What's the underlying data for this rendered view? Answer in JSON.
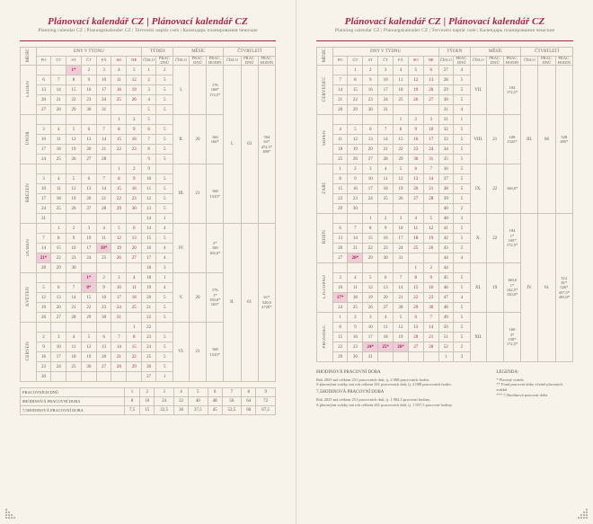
{
  "accent": "#a8234b",
  "title": "Plánovací kalendář CZ | Plánovací kalendář CZ",
  "subtitle": "Planning calendar CZ | Planungskalender CZ | Tervezési naptár cseh | Календарь планирования чешские",
  "header_groups": [
    "MĚSÍC",
    "DNY V TÝDNU",
    "TÝDEN",
    "MĚSÍC",
    "ČTVRTLETÍ"
  ],
  "day_labels": [
    "PO",
    "ÚT",
    "ST",
    "ČT",
    "PÁ",
    "SO",
    "NE"
  ],
  "sub_labels": [
    "ČÍSLO",
    "PRAC. DNŮ",
    "ČÍSLO",
    "PRAC. DNŮ",
    "PRAC. HODIN",
    "ČÍSLO",
    "PRAC. DNŮ",
    "PRAC. HODIN"
  ],
  "months_left": [
    {
      "name": "LEDEN",
      "weeks": [
        {
          "d": [
            "",
            "",
            "1*",
            "2",
            "3",
            "4",
            "5"
          ],
          "wk": 1,
          "wd": 2
        },
        {
          "d": [
            "6",
            "7",
            "8",
            "9",
            "10",
            "11",
            "12"
          ],
          "wk": 2,
          "wd": 5
        },
        {
          "d": [
            "13",
            "14",
            "15",
            "16",
            "17",
            "18",
            "19"
          ],
          "wk": 3,
          "wd": 5
        },
        {
          "d": [
            "20",
            "21",
            "22",
            "23",
            "24",
            "25",
            "26"
          ],
          "wk": 4,
          "wd": 5
        },
        {
          "d": [
            "27",
            "28",
            "29",
            "30",
            "31",
            "",
            ""
          ],
          "wk": 5,
          "wd": 5
        }
      ],
      "mnum": "I.",
      "mwd": "",
      "mh": [
        "176",
        "168*",
        "172,5*"
      ]
    },
    {
      "name": "ÚNOR",
      "weeks": [
        {
          "d": [
            "",
            "",
            "",
            "",
            "",
            "1",
            "2"
          ],
          "wk": 5,
          "wd": ""
        },
        {
          "d": [
            "3",
            "4",
            "5",
            "6",
            "7",
            "8",
            "9"
          ],
          "wk": 6,
          "wd": 5
        },
        {
          "d": [
            "10",
            "11",
            "12",
            "13",
            "14",
            "15",
            "16"
          ],
          "wk": 7,
          "wd": 5
        },
        {
          "d": [
            "17",
            "18",
            "19",
            "20",
            "21",
            "22",
            "23"
          ],
          "wk": 8,
          "wd": 5
        },
        {
          "d": [
            "24",
            "25",
            "26",
            "27",
            "28",
            "",
            ""
          ],
          "wk": 9,
          "wd": 5
        }
      ],
      "mnum": "II.",
      "mwd": 20,
      "mh": [
        "160",
        "160*"
      ]
    },
    {
      "name": "BŘEZEN",
      "weeks": [
        {
          "d": [
            "",
            "",
            "",
            "",
            "",
            "1",
            "2"
          ],
          "wk": 9,
          "wd": ""
        },
        {
          "d": [
            "3",
            "4",
            "5",
            "6",
            "7",
            "8",
            "9"
          ],
          "wk": 10,
          "wd": 5
        },
        {
          "d": [
            "10",
            "11",
            "12",
            "13",
            "14",
            "15",
            "16"
          ],
          "wk": 11,
          "wd": 5
        },
        {
          "d": [
            "17",
            "18",
            "19",
            "20",
            "21",
            "22",
            "23"
          ],
          "wk": 12,
          "wd": 5
        },
        {
          "d": [
            "24",
            "25",
            "26",
            "27",
            "28",
            "29",
            "30"
          ],
          "wk": 13,
          "wd": 5
        },
        {
          "d": [
            "31",
            "",
            "",
            "",
            "",
            "",
            ""
          ],
          "wk": 14,
          "wd": 1
        }
      ],
      "mnum": "III.",
      "mwd": 21,
      "mh": [
        "168",
        "1525*"
      ]
    },
    {
      "name": "DUBEN",
      "weeks": [
        {
          "d": [
            "",
            "1",
            "2",
            "3",
            "4",
            "5",
            "6"
          ],
          "wk": 14,
          "wd": 4
        },
        {
          "d": [
            "7",
            "8",
            "9",
            "10",
            "11",
            "12",
            "13"
          ],
          "wk": 15,
          "wd": 5
        },
        {
          "d": [
            "14",
            "15",
            "16",
            "17",
            "18*",
            "19",
            "20"
          ],
          "wk": 16,
          "wd": 4
        },
        {
          "d": [
            "21*",
            "22",
            "23",
            "24",
            "25",
            "26",
            "27"
          ],
          "wk": 17,
          "wd": 4
        },
        {
          "d": [
            "28",
            "29",
            "30",
            "",
            "",
            "",
            ""
          ],
          "wk": 18,
          "wd": 3
        }
      ],
      "mnum": "IV.",
      "mwd": "",
      "mh": [
        "2*",
        "160",
        "165,0*"
      ]
    },
    {
      "name": "KVĚTEN",
      "weeks": [
        {
          "d": [
            "",
            "",
            "",
            "1*",
            "2",
            "3",
            "4"
          ],
          "wk": 18,
          "wd": 1
        },
        {
          "d": [
            "5",
            "6",
            "7",
            "8*",
            "9",
            "10",
            "11"
          ],
          "wk": 19,
          "wd": 4
        },
        {
          "d": [
            "12",
            "13",
            "14",
            "15",
            "16",
            "17",
            "18"
          ],
          "wk": 20,
          "wd": 5
        },
        {
          "d": [
            "19",
            "20",
            "21",
            "22",
            "23",
            "24",
            "25"
          ],
          "wk": 21,
          "wd": 5
        },
        {
          "d": [
            "26",
            "27",
            "28",
            "29",
            "30",
            "31",
            ""
          ],
          "wk": 22,
          "wd": 5
        }
      ],
      "mnum": "V.",
      "mwd": 20,
      "mh": [
        "176",
        "1*",
        "150,0*",
        "165*"
      ]
    },
    {
      "name": "ČERVEN",
      "weeks": [
        {
          "d": [
            "",
            "",
            "",
            "",
            "",
            "",
            "1"
          ],
          "wk": 22,
          "wd": ""
        },
        {
          "d": [
            "2",
            "3",
            "4",
            "5",
            "6",
            "7",
            "8"
          ],
          "wk": 23,
          "wd": 5
        },
        {
          "d": [
            "9",
            "10",
            "11",
            "12",
            "13",
            "14",
            "15"
          ],
          "wk": 24,
          "wd": 5
        },
        {
          "d": [
            "16",
            "17",
            "18",
            "19",
            "20",
            "21",
            "22"
          ],
          "wk": 25,
          "wd": 5
        },
        {
          "d": [
            "23",
            "24",
            "25",
            "26",
            "27",
            "28",
            "29"
          ],
          "wk": 26,
          "wd": 5
        },
        {
          "d": [
            "30",
            "",
            "",
            "",
            "",
            "",
            ""
          ],
          "wk": 27,
          "wd": 1
        }
      ],
      "mnum": "VI.",
      "mwd": 21,
      "mh": [
        "168",
        "1525*"
      ]
    }
  ],
  "q_left": [
    {
      "num": "I.",
      "rows": 5,
      "wd": 63,
      "h": [
        "504",
        "63*",
        "472,5*",
        "490*"
      ]
    },
    {
      "num": "II.",
      "rows": 5,
      "wd": 61,
      "h": [
        "61*",
        "520,0",
        "4720*"
      ]
    }
  ],
  "months_right": [
    {
      "name": "ČERVENEC",
      "weeks": [
        {
          "d": [
            "",
            "1",
            "2",
            "3",
            "4",
            "5",
            "6"
          ],
          "wk": 27,
          "wd": 4
        },
        {
          "d": [
            "7",
            "8",
            "9",
            "10",
            "11",
            "12",
            "13"
          ],
          "wk": 28,
          "wd": 5
        },
        {
          "d": [
            "14",
            "15",
            "16",
            "17",
            "18",
            "19",
            "20"
          ],
          "wk": 29,
          "wd": 5
        },
        {
          "d": [
            "21",
            "22",
            "23",
            "24",
            "25",
            "26",
            "27"
          ],
          "wk": 30,
          "wd": 5
        },
        {
          "d": [
            "28",
            "29",
            "30",
            "31",
            "",
            "",
            ""
          ],
          "wk": 31,
          "wd": 4
        }
      ],
      "mnum": "VII.",
      "mwd": "",
      "mh": [
        "184",
        "172,5*"
      ]
    },
    {
      "name": "SRPEN",
      "weeks": [
        {
          "d": [
            "",
            "",
            "",
            "",
            "1",
            "2",
            "3"
          ],
          "wk": 31,
          "wd": 1
        },
        {
          "d": [
            "4",
            "5",
            "6",
            "7",
            "8",
            "9",
            "10"
          ],
          "wk": 32,
          "wd": 5
        },
        {
          "d": [
            "11",
            "12",
            "13",
            "14",
            "15",
            "16",
            "17"
          ],
          "wk": 33,
          "wd": 5
        },
        {
          "d": [
            "18",
            "19",
            "20",
            "21",
            "22",
            "23",
            "24"
          ],
          "wk": 34,
          "wd": 5
        },
        {
          "d": [
            "25",
            "26",
            "27",
            "28",
            "29",
            "30",
            "31"
          ],
          "wk": 35,
          "wd": 5
        }
      ],
      "mnum": "VIII.",
      "mwd": 21,
      "mh": [
        "168",
        "1525*"
      ]
    },
    {
      "name": "ZÁŘÍ",
      "weeks": [
        {
          "d": [
            "1",
            "2",
            "3",
            "4",
            "5",
            "6",
            "7"
          ],
          "wk": 36,
          "wd": 5
        },
        {
          "d": [
            "8",
            "9",
            "10",
            "11",
            "12",
            "13",
            "14"
          ],
          "wk": 37,
          "wd": 5
        },
        {
          "d": [
            "15",
            "16",
            "17",
            "18",
            "19",
            "20",
            "21"
          ],
          "wk": 38,
          "wd": 5
        },
        {
          "d": [
            "22",
            "23",
            "24",
            "25",
            "26",
            "27",
            "28"
          ],
          "wk": 39,
          "wd": 5
        },
        {
          "d": [
            "29",
            "30",
            "",
            "",
            "",
            "",
            ""
          ],
          "wk": 40,
          "wd": 2
        }
      ],
      "mnum": "IX.",
      "mwd": 22,
      "mh": [
        "160,0*"
      ]
    },
    {
      "name": "ŘÍJEN",
      "weeks": [
        {
          "d": [
            "",
            "",
            "1",
            "2",
            "3",
            "4",
            "5"
          ],
          "wk": 40,
          "wd": 3
        },
        {
          "d": [
            "6",
            "7",
            "8",
            "9",
            "10",
            "11",
            "12"
          ],
          "wk": 41,
          "wd": 5
        },
        {
          "d": [
            "13",
            "14",
            "15",
            "16",
            "17",
            "18",
            "19"
          ],
          "wk": 42,
          "wd": 5
        },
        {
          "d": [
            "20",
            "21",
            "22",
            "23",
            "24",
            "25",
            "26"
          ],
          "wk": 43,
          "wd": 5
        },
        {
          "d": [
            "27",
            "28*",
            "29",
            "30",
            "31",
            "",
            ""
          ],
          "wk": 44,
          "wd": 4
        }
      ],
      "mnum": "X.",
      "mwd": 22,
      "mh": [
        "184",
        "1*",
        "165*",
        "172,5*"
      ]
    },
    {
      "name": "LISTOPAD",
      "weeks": [
        {
          "d": [
            "",
            "",
            "",
            "",
            "",
            "1",
            "2"
          ],
          "wk": 44,
          "wd": ""
        },
        {
          "d": [
            "3",
            "4",
            "5",
            "6",
            "7",
            "8",
            "9"
          ],
          "wk": 45,
          "wd": 5
        },
        {
          "d": [
            "10",
            "11",
            "12",
            "13",
            "14",
            "15",
            "16"
          ],
          "wk": 46,
          "wd": 5
        },
        {
          "d": [
            "17*",
            "18",
            "19",
            "20",
            "21",
            "22",
            "23"
          ],
          "wk": 47,
          "wd": 4
        },
        {
          "d": [
            "24",
            "25",
            "26",
            "27",
            "28",
            "29",
            "30"
          ],
          "wk": 48,
          "wd": 5
        }
      ],
      "mnum": "XI.",
      "mwd": 19,
      "mh": [
        "160,0",
        "1*",
        "142,5*",
        "150,0*"
      ]
    },
    {
      "name": "PROSINEC",
      "weeks": [
        {
          "d": [
            "1",
            "2",
            "3",
            "4",
            "5",
            "6",
            "7"
          ],
          "wk": 49,
          "wd": 5
        },
        {
          "d": [
            "8",
            "9",
            "10",
            "11",
            "12",
            "13",
            "14"
          ],
          "wk": 50,
          "wd": 5
        },
        {
          "d": [
            "15",
            "16",
            "17",
            "18",
            "19",
            "20",
            "21"
          ],
          "wk": 51,
          "wd": 5
        },
        {
          "d": [
            "22",
            "23",
            "24*",
            "25*",
            "26*",
            "27",
            "28"
          ],
          "wk": 52,
          "wd": 2
        },
        {
          "d": [
            "29",
            "30",
            "31",
            "",
            "",
            "",
            ""
          ],
          "wk": 1,
          "wd": 3
        }
      ],
      "mnum": "XII.",
      "mwd": "",
      "mh": [
        "160",
        "3*",
        "150*",
        "172,5*"
      ]
    }
  ],
  "q_right": [
    {
      "num": "III.",
      "rows": 5,
      "wd": 66,
      "h": [
        "528",
        "495*"
      ]
    },
    {
      "num": "IV.",
      "rows": 5,
      "wd": 61,
      "h": [
        "512",
        "81*",
        "526*",
        "457,5*",
        "495,0*"
      ]
    }
  ],
  "footer_left": {
    "label": "PRACOVNÍCH DNŮ",
    "cols": [
      "1",
      "2",
      "3",
      "4",
      "5",
      "6",
      "7",
      "8",
      "9"
    ],
    "rows": [
      {
        "label": "8HODINOVÁ PRACOVNÍ DOBA",
        "v": [
          "8",
          "16",
          "24",
          "32",
          "40",
          "48",
          "56",
          "64",
          "72"
        ]
      },
      {
        "label": "7,5HODINOVÁ PRACOVNÍ DOBA",
        "v": [
          "7,5",
          "15",
          "22,5",
          "30",
          "37,5",
          "45",
          "52,5",
          "60",
          "67,5"
        ]
      }
    ]
  },
  "footer_right": {
    "sec1_title": "8HODINOVÁ PRACOVNÍ DOBA",
    "sec1_lines": [
      "Rok 2025 má celkem 251 pracovních dnů, tj. 2 008 pracovních hodin.",
      "S placenými svátky má rok celkem 261 pracovních dnů, tj. 2 088 pracovních hodin."
    ],
    "sec2_title": "7,5HODINOVÁ PRACOVNÍ DOBA",
    "sec2_lines": [
      "Rok 2025 má celkem 251 pracovních dnů, tj. 1 882,5 pracovní hodiny.",
      "S placenými svátky má rok celkem 261 pracovních dnů, tj. 1 957,5 pracovní hodiny."
    ],
    "legend_title": "LEGENDA:",
    "legend": [
      "*   Placený svátek",
      "**  Fond pracovní doby včetně placených svátků",
      "*** 7,5hodinová pracovní doba"
    ]
  }
}
